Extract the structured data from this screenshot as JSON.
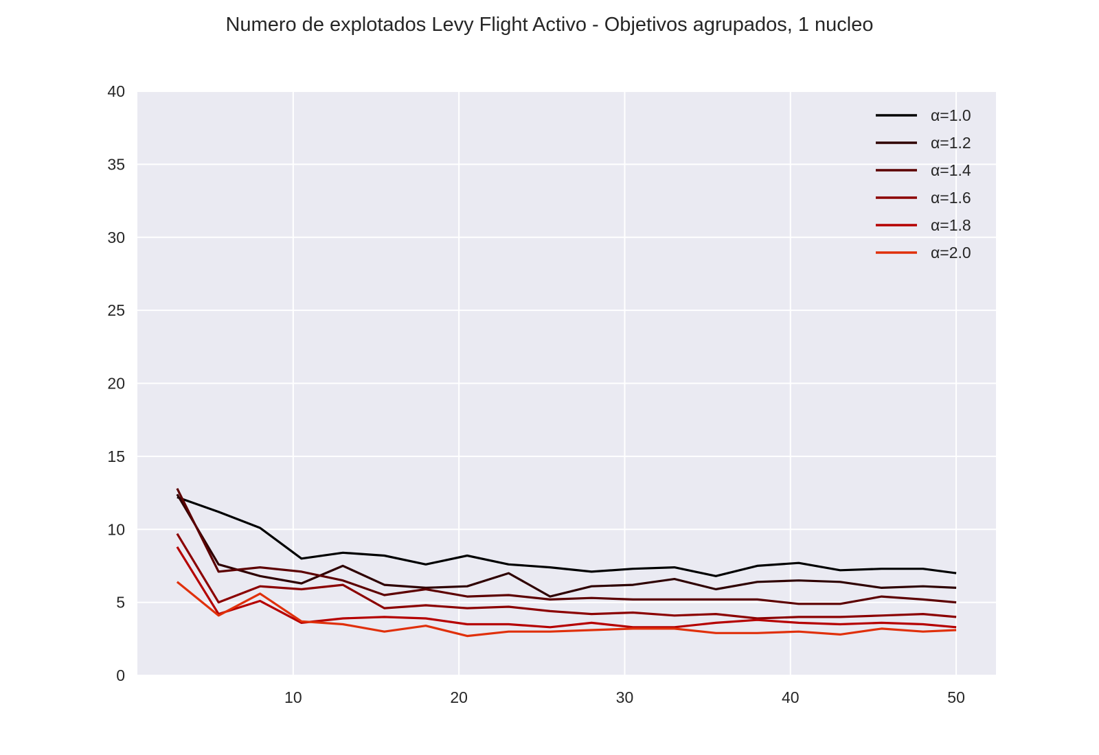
{
  "chart_data": {
    "type": "line",
    "title": "Numero de explotados Levy Flight Activo - Objetivos agrupados, 1 nucleo",
    "xlabel": "",
    "ylabel": "",
    "xlim": [
      0.6,
      52.4
    ],
    "ylim": [
      0,
      40
    ],
    "x_ticks": [
      10,
      20,
      30,
      40,
      50
    ],
    "y_ticks": [
      0,
      5,
      10,
      15,
      20,
      25,
      30,
      35,
      40
    ],
    "grid": true,
    "legend_position": "top-right",
    "x": [
      3,
      5.5,
      8,
      10.5,
      13,
      15.5,
      18,
      20.5,
      23,
      25.5,
      28,
      30.5,
      33,
      35.5,
      38,
      40.5,
      43,
      45.5,
      48,
      50
    ],
    "series": [
      {
        "name": "α=1.0",
        "color": "#000000",
        "values": [
          12.2,
          11.2,
          10.1,
          8.0,
          8.4,
          8.2,
          7.6,
          8.2,
          7.6,
          7.4,
          7.1,
          7.3,
          7.4,
          6.8,
          7.5,
          7.7,
          7.2,
          7.3,
          7.3,
          7.0
        ]
      },
      {
        "name": "α=1.2",
        "color": "#2e0000",
        "values": [
          12.4,
          7.6,
          6.8,
          6.3,
          7.5,
          6.2,
          6.0,
          6.1,
          7.0,
          5.4,
          6.1,
          6.2,
          6.6,
          5.9,
          6.4,
          6.5,
          6.4,
          6.0,
          6.1,
          6.0
        ]
      },
      {
        "name": "α=1.4",
        "color": "#5c0000",
        "values": [
          12.8,
          7.1,
          7.4,
          7.1,
          6.5,
          5.5,
          5.9,
          5.4,
          5.5,
          5.2,
          5.3,
          5.2,
          5.2,
          5.2,
          5.2,
          4.9,
          4.9,
          5.4,
          5.2,
          5.0
        ]
      },
      {
        "name": "α=1.6",
        "color": "#8b0000",
        "values": [
          9.7,
          5.0,
          6.1,
          5.9,
          6.2,
          4.6,
          4.8,
          4.6,
          4.7,
          4.4,
          4.2,
          4.3,
          4.1,
          4.2,
          3.9,
          4.0,
          4.0,
          4.1,
          4.2,
          4.0
        ]
      },
      {
        "name": "α=1.8",
        "color": "#b50000",
        "values": [
          8.8,
          4.2,
          5.1,
          3.6,
          3.9,
          4.0,
          3.9,
          3.5,
          3.5,
          3.3,
          3.6,
          3.3,
          3.3,
          3.6,
          3.8,
          3.6,
          3.5,
          3.6,
          3.5,
          3.3
        ]
      },
      {
        "name": "α=2.0",
        "color": "#e0300b",
        "values": [
          6.4,
          4.1,
          5.6,
          3.7,
          3.5,
          3.0,
          3.4,
          2.7,
          3.0,
          3.0,
          3.1,
          3.2,
          3.2,
          2.9,
          2.9,
          3.0,
          2.8,
          3.2,
          3.0,
          3.1
        ]
      }
    ]
  }
}
